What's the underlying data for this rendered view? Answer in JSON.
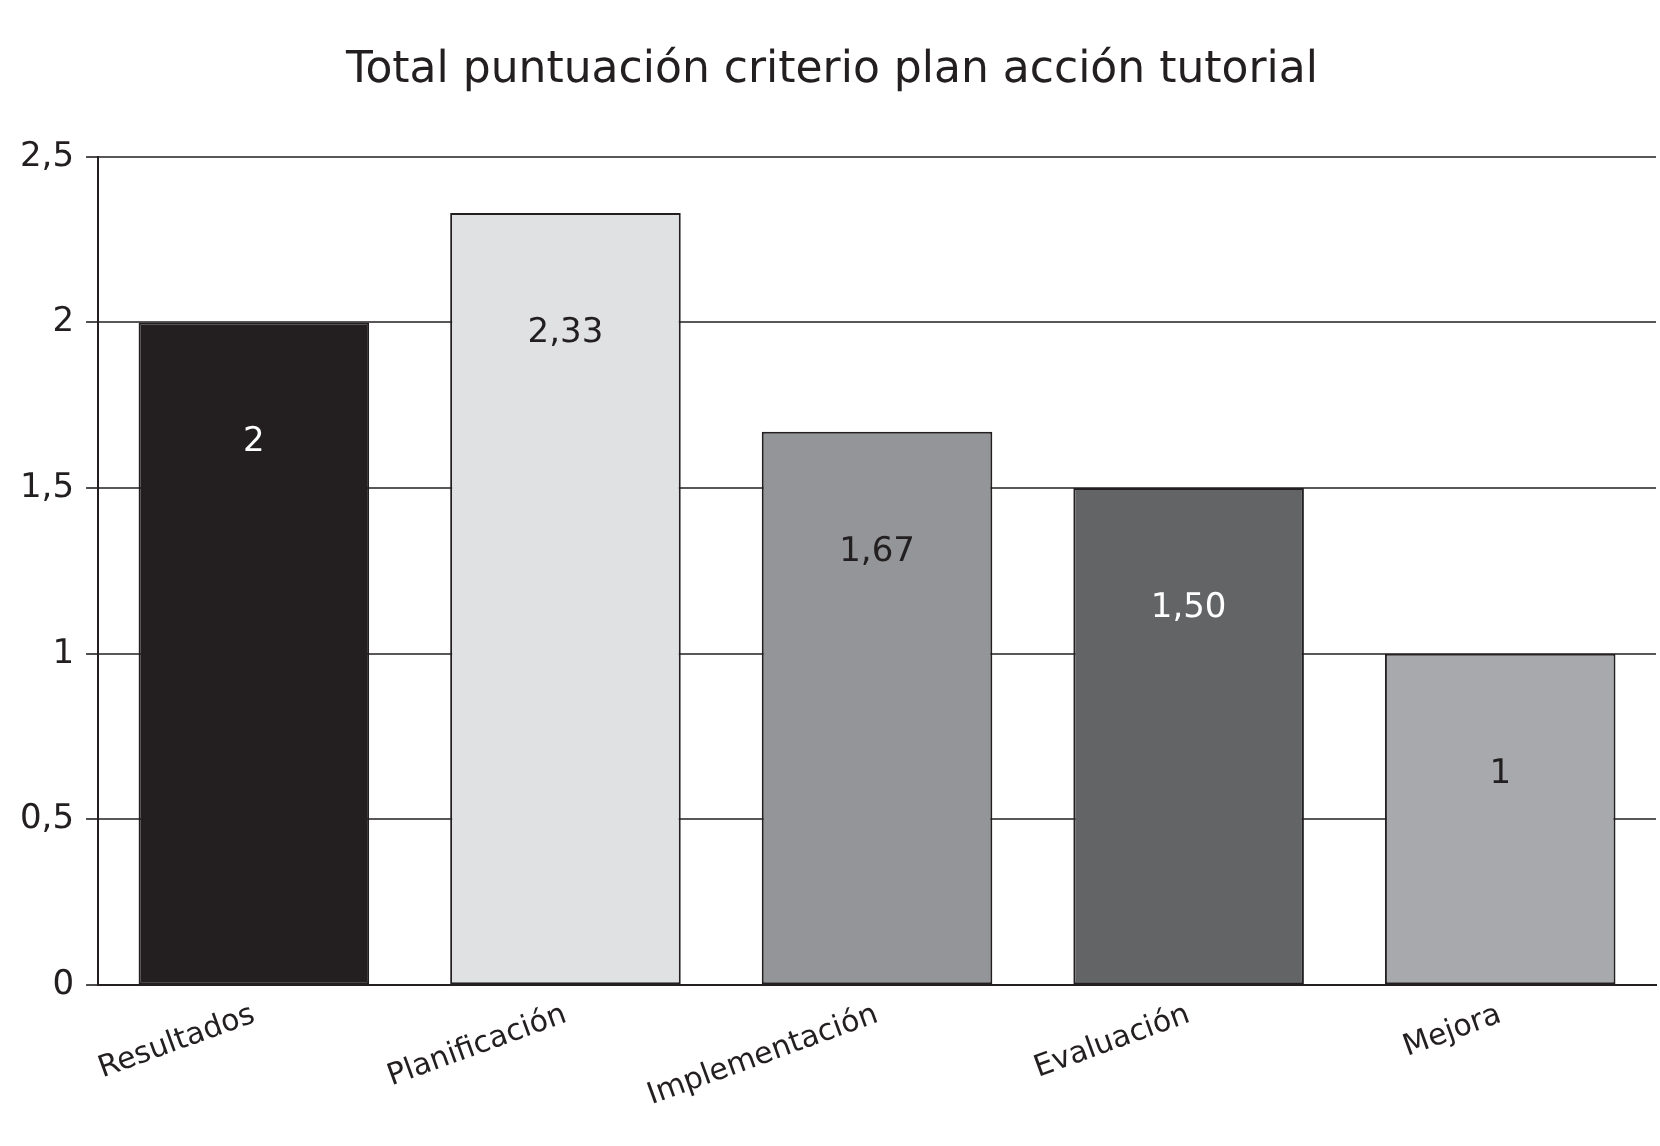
{
  "chart_data": {
    "type": "bar",
    "title": "Total puntuación criterio plan acción tutorial",
    "categories": [
      "Resultados",
      "Planificación",
      "Implementación",
      "Evaluación",
      "Mejora"
    ],
    "values": [
      2,
      2.33,
      1.67,
      1.5,
      1
    ],
    "colors": [
      "#231f20",
      "#e0e1e3",
      "#939598",
      "#636466",
      "#a7a9ac"
    ],
    "value_labels": [
      "2",
      "2,33",
      "1,67",
      "1,50",
      "1"
    ],
    "ylim": [
      0,
      2.5
    ],
    "yticks": [
      0,
      {
        "value": 0.5,
        "label": "0,5"
      },
      1,
      {
        "value": 1.5,
        "label": "1,5"
      },
      2,
      {
        "value": 2.5,
        "label": "2,5"
      }
    ],
    "grid": "y",
    "legend": false
  }
}
